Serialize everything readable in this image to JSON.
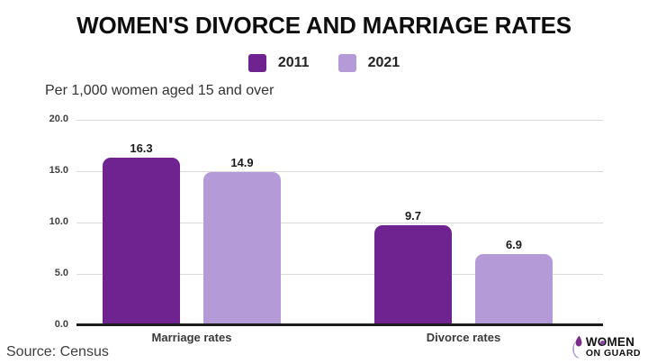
{
  "title": "WOMEN'S DIVORCE AND MARRIAGE RATES",
  "subtitle": "Per 1,000 women aged 15 and over",
  "legend": [
    {
      "label": "2011",
      "color": "#6f2390"
    },
    {
      "label": "2021",
      "color": "#b49bd7"
    }
  ],
  "source": "Source: Census",
  "logo": {
    "word1_part1": "W",
    "word1_part2": "O",
    "word1_part3": "MEN",
    "line2": "ON GUARD",
    "icon_color_dark": "#7b2d8b",
    "icon_color_light": "#b49bd7"
  },
  "chart_data": {
    "type": "bar",
    "categories": [
      "Marriage rates",
      "Divorce rates"
    ],
    "series": [
      {
        "name": "2011",
        "color": "#6f2390",
        "values": [
          16.3,
          9.7
        ]
      },
      {
        "name": "2021",
        "color": "#b49bd7",
        "values": [
          14.9,
          6.9
        ]
      }
    ],
    "title": "WOMEN'S DIVORCE AND MARRIAGE RATES",
    "xlabel": "",
    "ylabel": "Per 1,000 women aged 15 and over",
    "ylim": [
      0,
      20
    ],
    "yticks": [
      "20.0",
      "15.0",
      "10.0",
      "5.0",
      "0.0"
    ],
    "grid": true,
    "legend_position": "top"
  }
}
